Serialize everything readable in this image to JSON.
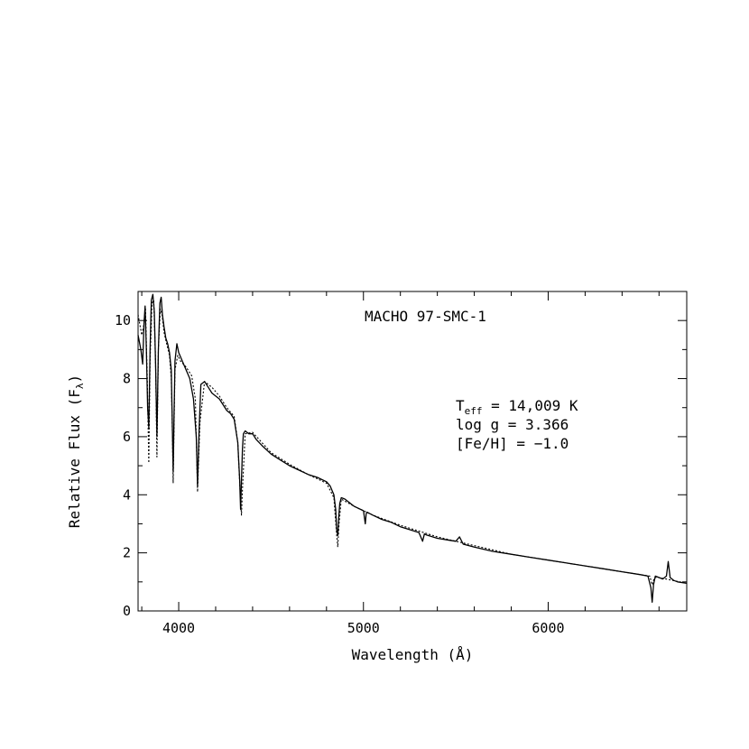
{
  "chart_data": {
    "type": "line",
    "title": "MACHO 97-SMC-1",
    "xlabel": "Wavelength (Å)",
    "ylabel_main": "Relative Flux (F",
    "ylabel_sub": "λ",
    "ylabel_close": ")",
    "xlim": [
      3780,
      6750
    ],
    "ylim": [
      0,
      11
    ],
    "x_ticks": [
      4000,
      5000,
      6000
    ],
    "x_tick_labels": [
      "4000",
      "5000",
      "6000"
    ],
    "y_ticks": [
      0,
      2,
      4,
      6,
      8,
      10
    ],
    "y_tick_labels": [
      "0",
      "2",
      "4",
      "6",
      "8",
      "10"
    ],
    "annotations": {
      "teff_main": "T",
      "teff_sub": "eff",
      "teff_rest": " = 14,009 K",
      "logg": "log g = 3.366",
      "feh": "[Fe/H] = −1.0"
    },
    "series": [
      {
        "style": "solid",
        "x": [
          3780,
          3795,
          3805,
          3812,
          3818,
          3825,
          3832,
          3838,
          3845,
          3852,
          3860,
          3868,
          3875,
          3882,
          3890,
          3898,
          3905,
          3912,
          3920,
          3930,
          3940,
          3950,
          3960,
          3965,
          3970,
          3975,
          3980,
          3990,
          4000,
          4020,
          4040,
          4060,
          4080,
          4095,
          4102,
          4110,
          4120,
          4140,
          4160,
          4180,
          4200,
          4220,
          4240,
          4260,
          4280,
          4300,
          4320,
          4330,
          4335,
          4340,
          4345,
          4350,
          4360,
          4380,
          4400,
          4420,
          4450,
          4500,
          4550,
          4600,
          4650,
          4700,
          4750,
          4800,
          4820,
          4840,
          4850,
          4855,
          4861,
          4866,
          4872,
          4880,
          4900,
          4950,
          5000,
          5010,
          5015,
          5020,
          5050,
          5100,
          5150,
          5200,
          5250,
          5300,
          5320,
          5330,
          5340,
          5400,
          5450,
          5500,
          5520,
          5540,
          5600,
          5700,
          5800,
          5900,
          6000,
          6100,
          6200,
          6300,
          6400,
          6450,
          6500,
          6540,
          6556,
          6563,
          6570,
          6580,
          6600,
          6620,
          6640,
          6650,
          6660,
          6680,
          6700,
          6750
        ],
        "y": [
          9.5,
          9.0,
          8.5,
          9.9,
          10.5,
          9.0,
          7.0,
          6.3,
          9.0,
          10.7,
          10.9,
          10.3,
          8.5,
          6.0,
          9.0,
          10.6,
          10.8,
          10.2,
          9.8,
          9.4,
          9.2,
          8.9,
          8.3,
          6.5,
          4.8,
          6.8,
          8.6,
          9.2,
          8.9,
          8.6,
          8.3,
          8.0,
          7.3,
          6.0,
          4.3,
          6.2,
          7.8,
          7.9,
          7.7,
          7.5,
          7.4,
          7.3,
          7.1,
          6.9,
          6.8,
          6.6,
          5.8,
          4.5,
          3.5,
          4.5,
          5.6,
          6.1,
          6.2,
          6.1,
          6.1,
          5.9,
          5.7,
          5.4,
          5.2,
          5.0,
          4.85,
          4.7,
          4.6,
          4.45,
          4.3,
          4.0,
          3.5,
          2.8,
          2.6,
          3.2,
          3.7,
          3.9,
          3.85,
          3.6,
          3.45,
          3.0,
          3.35,
          3.4,
          3.3,
          3.15,
          3.05,
          2.9,
          2.8,
          2.7,
          2.4,
          2.65,
          2.62,
          2.5,
          2.45,
          2.4,
          2.55,
          2.3,
          2.2,
          2.05,
          1.95,
          1.85,
          1.75,
          1.65,
          1.55,
          1.45,
          1.35,
          1.3,
          1.25,
          1.2,
          0.8,
          0.3,
          0.9,
          1.2,
          1.15,
          1.1,
          1.2,
          1.7,
          1.15,
          1.05,
          1.0,
          0.95
        ]
      },
      {
        "style": "dotted",
        "x": [
          3780,
          3800,
          3810,
          3820,
          3830,
          3838,
          3845,
          3855,
          3865,
          3875,
          3882,
          3890,
          3900,
          3910,
          3920,
          3935,
          3950,
          3960,
          3966,
          3970,
          3974,
          3980,
          3995,
          4010,
          4040,
          4070,
          4090,
          4102,
          4115,
          4140,
          4180,
          4220,
          4260,
          4300,
          4320,
          4335,
          4340,
          4345,
          4360,
          4400,
          4500,
          4600,
          4700,
          4800,
          4840,
          4855,
          4861,
          4868,
          4880,
          4950,
          5050,
          5200,
          5400,
          5600,
          5800,
          6000,
          6200,
          6400,
          6550,
          6563,
          6575,
          6600,
          6750
        ],
        "y": [
          10.2,
          9.5,
          9.8,
          10.4,
          8.0,
          5.1,
          8.6,
          10.6,
          10.7,
          8.6,
          5.3,
          9.0,
          10.4,
          10.2,
          9.6,
          9.2,
          8.8,
          8.0,
          6.0,
          4.4,
          6.0,
          8.3,
          8.8,
          8.6,
          8.4,
          8.1,
          7.3,
          4.1,
          6.5,
          7.9,
          7.7,
          7.4,
          7.0,
          6.7,
          5.8,
          3.8,
          3.3,
          4.2,
          6.1,
          6.15,
          5.45,
          5.05,
          4.7,
          4.4,
          3.9,
          2.6,
          2.2,
          3.0,
          3.85,
          3.6,
          3.3,
          2.95,
          2.55,
          2.25,
          1.95,
          1.75,
          1.55,
          1.35,
          1.2,
          0.9,
          1.15,
          1.15,
          0.95
        ]
      }
    ]
  }
}
